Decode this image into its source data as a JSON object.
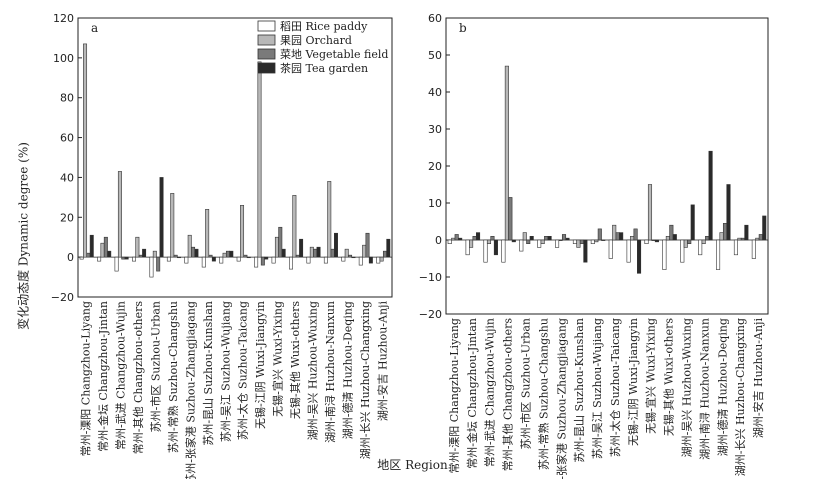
{
  "figure": {
    "ylabel": "变化动态度 Dynamic degree (%)",
    "xlabel": "地区 Region"
  },
  "chart_data": [
    {
      "type": "bar",
      "panel_label": "a",
      "ylim": [
        -20,
        120
      ],
      "yticks": [
        -20,
        0,
        20,
        40,
        60,
        80,
        100,
        120
      ],
      "legend_position": "top-right",
      "categories": [
        "常州-溧阳 Changzhou-Liyang",
        "常州-金坛 Changzhou-Jintan",
        "常州-武进 Changzhou-Wujin",
        "常州-其他 Changzhou-others",
        "苏州-市区 Suzhou-Urban",
        "苏州-常熟 Suzhou-Changshu",
        "苏州-张家港 Suzhou-Zhangjiagang",
        "苏州-昆山 Suzhou-Kunshan",
        "苏州-吴江 Suzhou-Wujiang",
        "苏州-太仓 Suzhou-Taicang",
        "无锡-江阴 Wuxi-Jiangyin",
        "无锡-宜兴 Wuxi-Yixing",
        "无锡-其他 Wuxi-others",
        "湖州-吴兴 Huzhou-Wuxing",
        "湖州-南浔 Huzhou-Nanxun",
        "湖州-德清 Huzhou-Deqing",
        "湖州-长兴 Huzhou-Changxing",
        "湖州-安吉 Huzhou-Anji"
      ],
      "series": [
        {
          "name": "稻田 Rice paddy",
          "color": "#ffffff",
          "values": [
            -1,
            -2,
            -7,
            -2,
            -10,
            -2,
            -3,
            -5,
            -3,
            -2,
            -5,
            -3,
            -6,
            -3,
            -3,
            -2,
            -4,
            -3
          ]
        },
        {
          "name": "果园 Orchard",
          "color": "#b8b8b8",
          "values": [
            107,
            7,
            43,
            10,
            3,
            32,
            11,
            24,
            2,
            26,
            98,
            10,
            31,
            5,
            38,
            4,
            6,
            -2
          ]
        },
        {
          "name": "菜地 Vegetable field",
          "color": "#7a7a7a",
          "values": [
            2,
            10,
            -1,
            1,
            -7,
            1,
            5,
            1,
            3,
            1,
            -4,
            15,
            1,
            4,
            4,
            1,
            12,
            3
          ]
        },
        {
          "name": "茶园 Tea garden",
          "color": "#2a2a2a",
          "values": [
            11,
            3,
            -1,
            4,
            40,
            0,
            4,
            -2,
            3,
            0,
            -1,
            4,
            9,
            5,
            12,
            0,
            -3,
            9
          ]
        }
      ]
    },
    {
      "type": "bar",
      "panel_label": "b",
      "ylim": [
        -20,
        60
      ],
      "yticks": [
        -20,
        -10,
        0,
        10,
        20,
        30,
        40,
        50,
        60
      ],
      "categories": [
        "常州-溧阳 Changzhou-Liyang",
        "常州-金坛 Changzhou-Jintan",
        "常州-武进 Changzhou-Wujin",
        "常州-其他 Changzhou-others",
        "苏州-市区 Suzhou-Urban",
        "苏州-常熟 Suzhou-Changshu",
        "苏州-张家港 Suzhou-Zhangjiagang",
        "苏州-昆山 Suzhou-Kunshan",
        "苏州-吴江 Suzhou-Wujiang",
        "苏州-太仓 Suzhou-Taicang",
        "无锡-江阴 Wuxi-Jiangyin",
        "无锡-宜兴 Wuxi-Yixing",
        "无锡-其他 Wuxi-others",
        "湖州-吴兴 Huzhou-Wuxing",
        "湖州-南浔 Huzhou-Nanxun",
        "湖州-德清 Huzhou-Deqing",
        "湖州-长兴 Huzhou-Changxing",
        "湖州-安吉 Huzhou-Anji"
      ],
      "series": [
        {
          "name": "稻田 Rice paddy",
          "color": "#ffffff",
          "values": [
            -1,
            -4,
            -6,
            -6,
            -3,
            -2,
            -2,
            -1,
            -1,
            -5,
            -6,
            -1,
            -8,
            -6,
            -4,
            -8,
            -4,
            -5
          ]
        },
        {
          "name": "果园 Orchard",
          "color": "#b8b8b8",
          "values": [
            0.5,
            -2,
            -1,
            47,
            2,
            -1,
            0,
            -2,
            -0.5,
            4,
            1,
            15,
            1,
            -2,
            -1,
            2,
            0.5,
            0.5
          ]
        },
        {
          "name": "菜地 Vegetable field",
          "color": "#7a7a7a",
          "values": [
            1.5,
            1,
            1,
            11.5,
            -1,
            1,
            1.5,
            -1,
            3,
            2,
            3,
            0,
            4,
            -1,
            1,
            4.5,
            0.5,
            1.5
          ]
        },
        {
          "name": "茶园 Tea garden",
          "color": "#2a2a2a",
          "values": [
            0.5,
            2,
            -4,
            -0.5,
            1,
            1,
            0.5,
            -6,
            0,
            2,
            -9,
            -0.5,
            1.5,
            9.5,
            24,
            15,
            4,
            6.5
          ]
        }
      ]
    }
  ]
}
